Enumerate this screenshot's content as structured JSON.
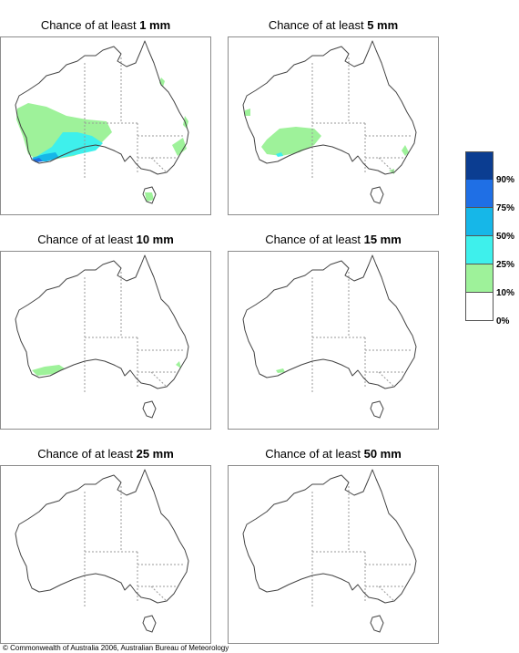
{
  "panels": [
    {
      "prefix": "Chance of at least ",
      "amount": "1 mm"
    },
    {
      "prefix": "Chance of at least ",
      "amount": "5 mm"
    },
    {
      "prefix": "Chance of at least ",
      "amount": "10 mm"
    },
    {
      "prefix": "Chance of at least ",
      "amount": "15 mm"
    },
    {
      "prefix": "Chance of at least ",
      "amount": "25 mm"
    },
    {
      "prefix": "Chance of at least ",
      "amount": "50 mm"
    }
  ],
  "legend": {
    "swatch_colors": [
      "#0b3d91",
      "#1f6fe5",
      "#16b7e8",
      "#3ef0ec",
      "#9ef29a",
      "#ffffff"
    ],
    "labels": [
      "90%",
      "75%",
      "50%",
      "25%",
      "10%",
      "0%"
    ]
  },
  "colors": {
    "coast": "#444444",
    "state_border": "#9a9a9a",
    "p10_25": "#9ef29a",
    "p25_50": "#3ef0ec",
    "p50_75": "#16b7e8",
    "p75_90": "#1f6fe5",
    "p90_100": "#0b3d91"
  },
  "copyright": "© Commonwealth of Australia 2006, Australian Bureau of Meteorology"
}
